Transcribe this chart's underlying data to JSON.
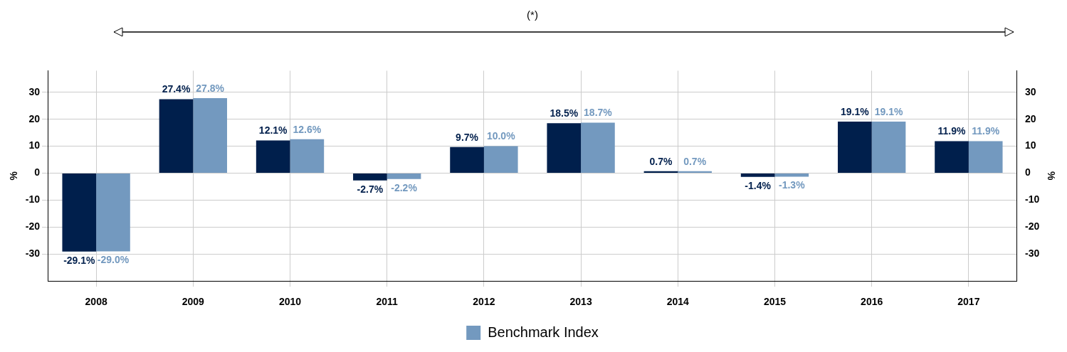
{
  "chart_data": {
    "type": "bar",
    "categories": [
      "2008",
      "2009",
      "2010",
      "2011",
      "2012",
      "2013",
      "2014",
      "2015",
      "2016",
      "2017"
    ],
    "series": [
      {
        "color": "#001f4c",
        "values": [
          -29.1,
          27.4,
          12.1,
          -2.7,
          9.7,
          18.5,
          0.7,
          -1.4,
          19.1,
          11.9
        ],
        "value_labels": [
          "-29.1%",
          "27.4%",
          "12.1%",
          "-2.7%",
          "9.7%",
          "18.5%",
          "0.7%",
          "-1.4%",
          "19.1%",
          "11.9%"
        ]
      },
      {
        "name": "Benchmark Index",
        "color": "#7399bf",
        "values": [
          -29.0,
          27.8,
          12.6,
          -2.2,
          10.0,
          18.7,
          0.7,
          -1.3,
          19.1,
          11.9
        ],
        "value_labels": [
          "-29.0%",
          "27.8%",
          "12.6%",
          "-2.2%",
          "10.0%",
          "18.7%",
          "0.7%",
          "-1.3%",
          "19.1%",
          "11.9%"
        ]
      }
    ],
    "ylabel": "%",
    "y2label": "%",
    "ylim": [
      -40,
      38
    ],
    "yticks": [
      -30,
      -20,
      -10,
      0,
      10,
      20,
      30
    ],
    "y2lim": [
      -40,
      38
    ],
    "y2ticks": [
      -30,
      -20,
      -10,
      0,
      10,
      20,
      30
    ],
    "grid": true,
    "legend": "bottom",
    "annotations": [
      "(*)"
    ]
  }
}
